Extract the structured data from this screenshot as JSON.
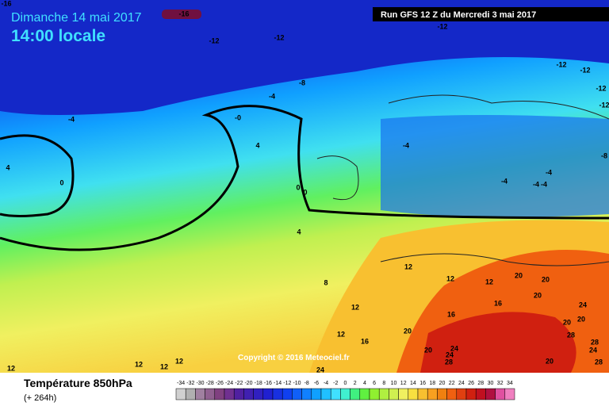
{
  "header": {
    "date": "Dimanche 14 mai 2017",
    "time": "14:00 locale",
    "run": "Run GFS 12 Z du Mercredi 3 mai 2017"
  },
  "map": {
    "copyright": "Copyright © 2016 Meteociel.fr",
    "contour_labels": [
      "-16",
      "-16",
      "-12",
      "-12",
      "-12",
      "-12",
      "-12",
      "-12",
      "-12",
      "-8",
      "-8",
      "-4",
      "-4",
      "-0",
      "-4",
      "4",
      "4",
      "0",
      "0",
      "0",
      "-4",
      "-4",
      "-4",
      "-4",
      "4",
      "8",
      "12",
      "12",
      "12",
      "12",
      "16",
      "16",
      "20",
      "20",
      "16",
      "20",
      "24",
      "20",
      "20",
      "20",
      "20",
      "24",
      "24",
      "28",
      "24",
      "28",
      "28",
      "24",
      "28",
      "20",
      "12",
      "12",
      "12",
      "12",
      "12"
    ]
  },
  "legend": {
    "title": "Température 850hPa",
    "lead": "(+ 264h)",
    "scale": {
      "values": [
        -34,
        -32,
        -30,
        -28,
        -26,
        -24,
        -22,
        -20,
        -18,
        -16,
        -14,
        -12,
        -10,
        -8,
        -6,
        -4,
        -2,
        0,
        2,
        4,
        6,
        8,
        10,
        12,
        14,
        16,
        18,
        20,
        22,
        24,
        26,
        28,
        30,
        32,
        34
      ],
      "colors": [
        "#d0d0d0",
        "#b0b0b0",
        "#a080a0",
        "#906090",
        "#804080",
        "#703090",
        "#5020a0",
        "#4020b0",
        "#3020c0",
        "#2020d0",
        "#1830e0",
        "#1040f0",
        "#1060f8",
        "#1080ff",
        "#10a0ff",
        "#20c0ff",
        "#40e0ff",
        "#40f0d0",
        "#40f080",
        "#60f040",
        "#90f030",
        "#b0f040",
        "#d0f050",
        "#f0f060",
        "#f8e040",
        "#f8c030",
        "#f8a020",
        "#f08010",
        "#f06010",
        "#e04010",
        "#d02010",
        "#c01020",
        "#b01040",
        "#e050a0",
        "#f080c0"
      ]
    }
  }
}
